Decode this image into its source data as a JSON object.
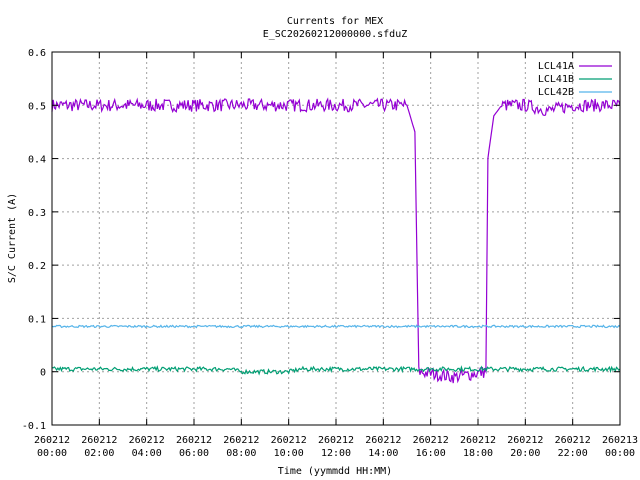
{
  "chart_data": {
    "type": "line",
    "title": "Currents for MEX",
    "subtitle": "E_SC20260212000000.sfduZ",
    "xlabel": "Time (yymmdd HH:MM)",
    "ylabel": "S/C Current (A)",
    "xlim": [
      "260212 00:00",
      "260213 00:00"
    ],
    "ylim": [
      -0.1,
      0.6
    ],
    "grid": true,
    "legend_position": "top-right",
    "x_ticks": [
      {
        "date": "260212",
        "time": "00:00"
      },
      {
        "date": "260212",
        "time": "02:00"
      },
      {
        "date": "260212",
        "time": "04:00"
      },
      {
        "date": "260212",
        "time": "06:00"
      },
      {
        "date": "260212",
        "time": "08:00"
      },
      {
        "date": "260212",
        "time": "10:00"
      },
      {
        "date": "260212",
        "time": "12:00"
      },
      {
        "date": "260212",
        "time": "14:00"
      },
      {
        "date": "260212",
        "time": "16:00"
      },
      {
        "date": "260212",
        "time": "18:00"
      },
      {
        "date": "260212",
        "time": "20:00"
      },
      {
        "date": "260212",
        "time": "22:00"
      },
      {
        "date": "260213",
        "time": "00:00"
      }
    ],
    "y_ticks": [
      "-0.1",
      "0",
      "0.1",
      "0.2",
      "0.3",
      "0.4",
      "0.5",
      "0.6"
    ],
    "series": [
      {
        "name": "LCL41A",
        "color": "#9400d3",
        "points": [
          [
            "260212 00:00",
            0.5
          ],
          [
            "260212 02:00",
            0.5
          ],
          [
            "260212 04:00",
            0.5
          ],
          [
            "260212 06:00",
            0.5
          ],
          [
            "260212 08:00",
            0.5
          ],
          [
            "260212 10:00",
            0.5
          ],
          [
            "260212 12:00",
            0.5
          ],
          [
            "260212 14:00",
            0.5
          ],
          [
            "260212 15:00",
            0.5
          ],
          [
            "260212 15:20",
            0.45
          ],
          [
            "260212 15:30",
            0.0
          ],
          [
            "260212 17:00",
            -0.01
          ],
          [
            "260212 18:20",
            0.0
          ],
          [
            "260212 18:25",
            0.4
          ],
          [
            "260212 18:40",
            0.48
          ],
          [
            "260212 19:00",
            0.5
          ],
          [
            "260212 20:00",
            0.5
          ],
          [
            "260212 21:00",
            0.49
          ],
          [
            "260212 22:00",
            0.5
          ],
          [
            "260213 00:00",
            0.5
          ]
        ]
      },
      {
        "name": "LCL41B",
        "color": "#009e73",
        "points": [
          [
            "260212 00:00",
            0.005
          ],
          [
            "260212 04:00",
            0.005
          ],
          [
            "260212 07:30",
            0.005
          ],
          [
            "260212 08:00",
            0.0
          ],
          [
            "260212 10:00",
            0.0
          ],
          [
            "260212 10:30",
            0.005
          ],
          [
            "260212 14:00",
            0.005
          ],
          [
            "260212 16:00",
            0.005
          ],
          [
            "260212 18:00",
            0.005
          ],
          [
            "260212 20:00",
            0.005
          ],
          [
            "260212 22:00",
            0.005
          ],
          [
            "260213 00:00",
            0.005
          ]
        ]
      },
      {
        "name": "LCL42B",
        "color": "#56b4e9",
        "points": [
          [
            "260212 00:00",
            0.085
          ],
          [
            "260212 06:00",
            0.085
          ],
          [
            "260212 12:00",
            0.085
          ],
          [
            "260212 18:00",
            0.085
          ],
          [
            "260213 00:00",
            0.085
          ]
        ]
      }
    ]
  }
}
